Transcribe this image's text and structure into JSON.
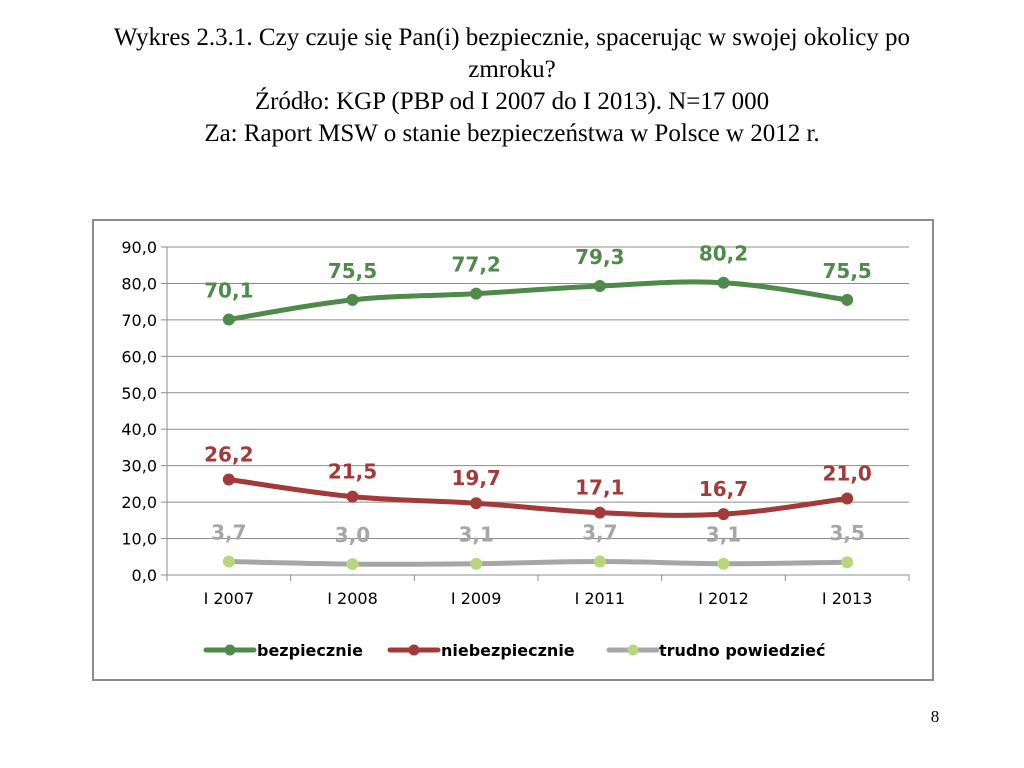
{
  "page": {
    "title_lines": [
      "Wykres 2.3.1. Czy czuje się Pan(i) bezpiecznie, spacerując w swojej okolicy po",
      "zmroku?",
      "Źródło: KGP (PBP od I 2007 do I 2013). N=17 000",
      "Za: Raport MSW o stanie bezpieczeństwa w Polsce w 2012 r."
    ],
    "page_number": "8"
  },
  "chart_data": {
    "type": "line",
    "title": "",
    "xlabel": "",
    "ylabel": "",
    "categories": [
      "I 2007",
      "I 2008",
      "I 2009",
      "I 2011",
      "I 2012",
      "I 2013"
    ],
    "ylim": [
      0,
      90
    ],
    "yticks": [
      "0,0",
      "10,0",
      "20,0",
      "30,0",
      "40,0",
      "50,0",
      "60,0",
      "70,0",
      "80,0",
      "90,0"
    ],
    "grid": true,
    "legend_position": "bottom",
    "series": [
      {
        "name": "bezpiecznie",
        "color": "#4f8a4a",
        "values": [
          70.1,
          75.5,
          77.2,
          79.3,
          80.2,
          75.5
        ],
        "labels": [
          "70,1",
          "75,5",
          "77,2",
          "79,3",
          "80,2",
          "75,5"
        ]
      },
      {
        "name": "niebezpiecznie",
        "color": "#a33a3a",
        "values": [
          26.2,
          21.5,
          19.7,
          17.1,
          16.7,
          21.0
        ],
        "labels": [
          "26,2",
          "21,5",
          "19,7",
          "17,1",
          "16,7",
          "21,0"
        ]
      },
      {
        "name": "trudno powiedzieć",
        "color": "#a6a6a6",
        "marker_color": "#b7d77c",
        "values": [
          3.7,
          3.0,
          3.1,
          3.7,
          3.1,
          3.5
        ],
        "labels": [
          "3,7",
          "3,0",
          "3,1",
          "3,7",
          "3,1",
          "3,5"
        ]
      }
    ]
  }
}
